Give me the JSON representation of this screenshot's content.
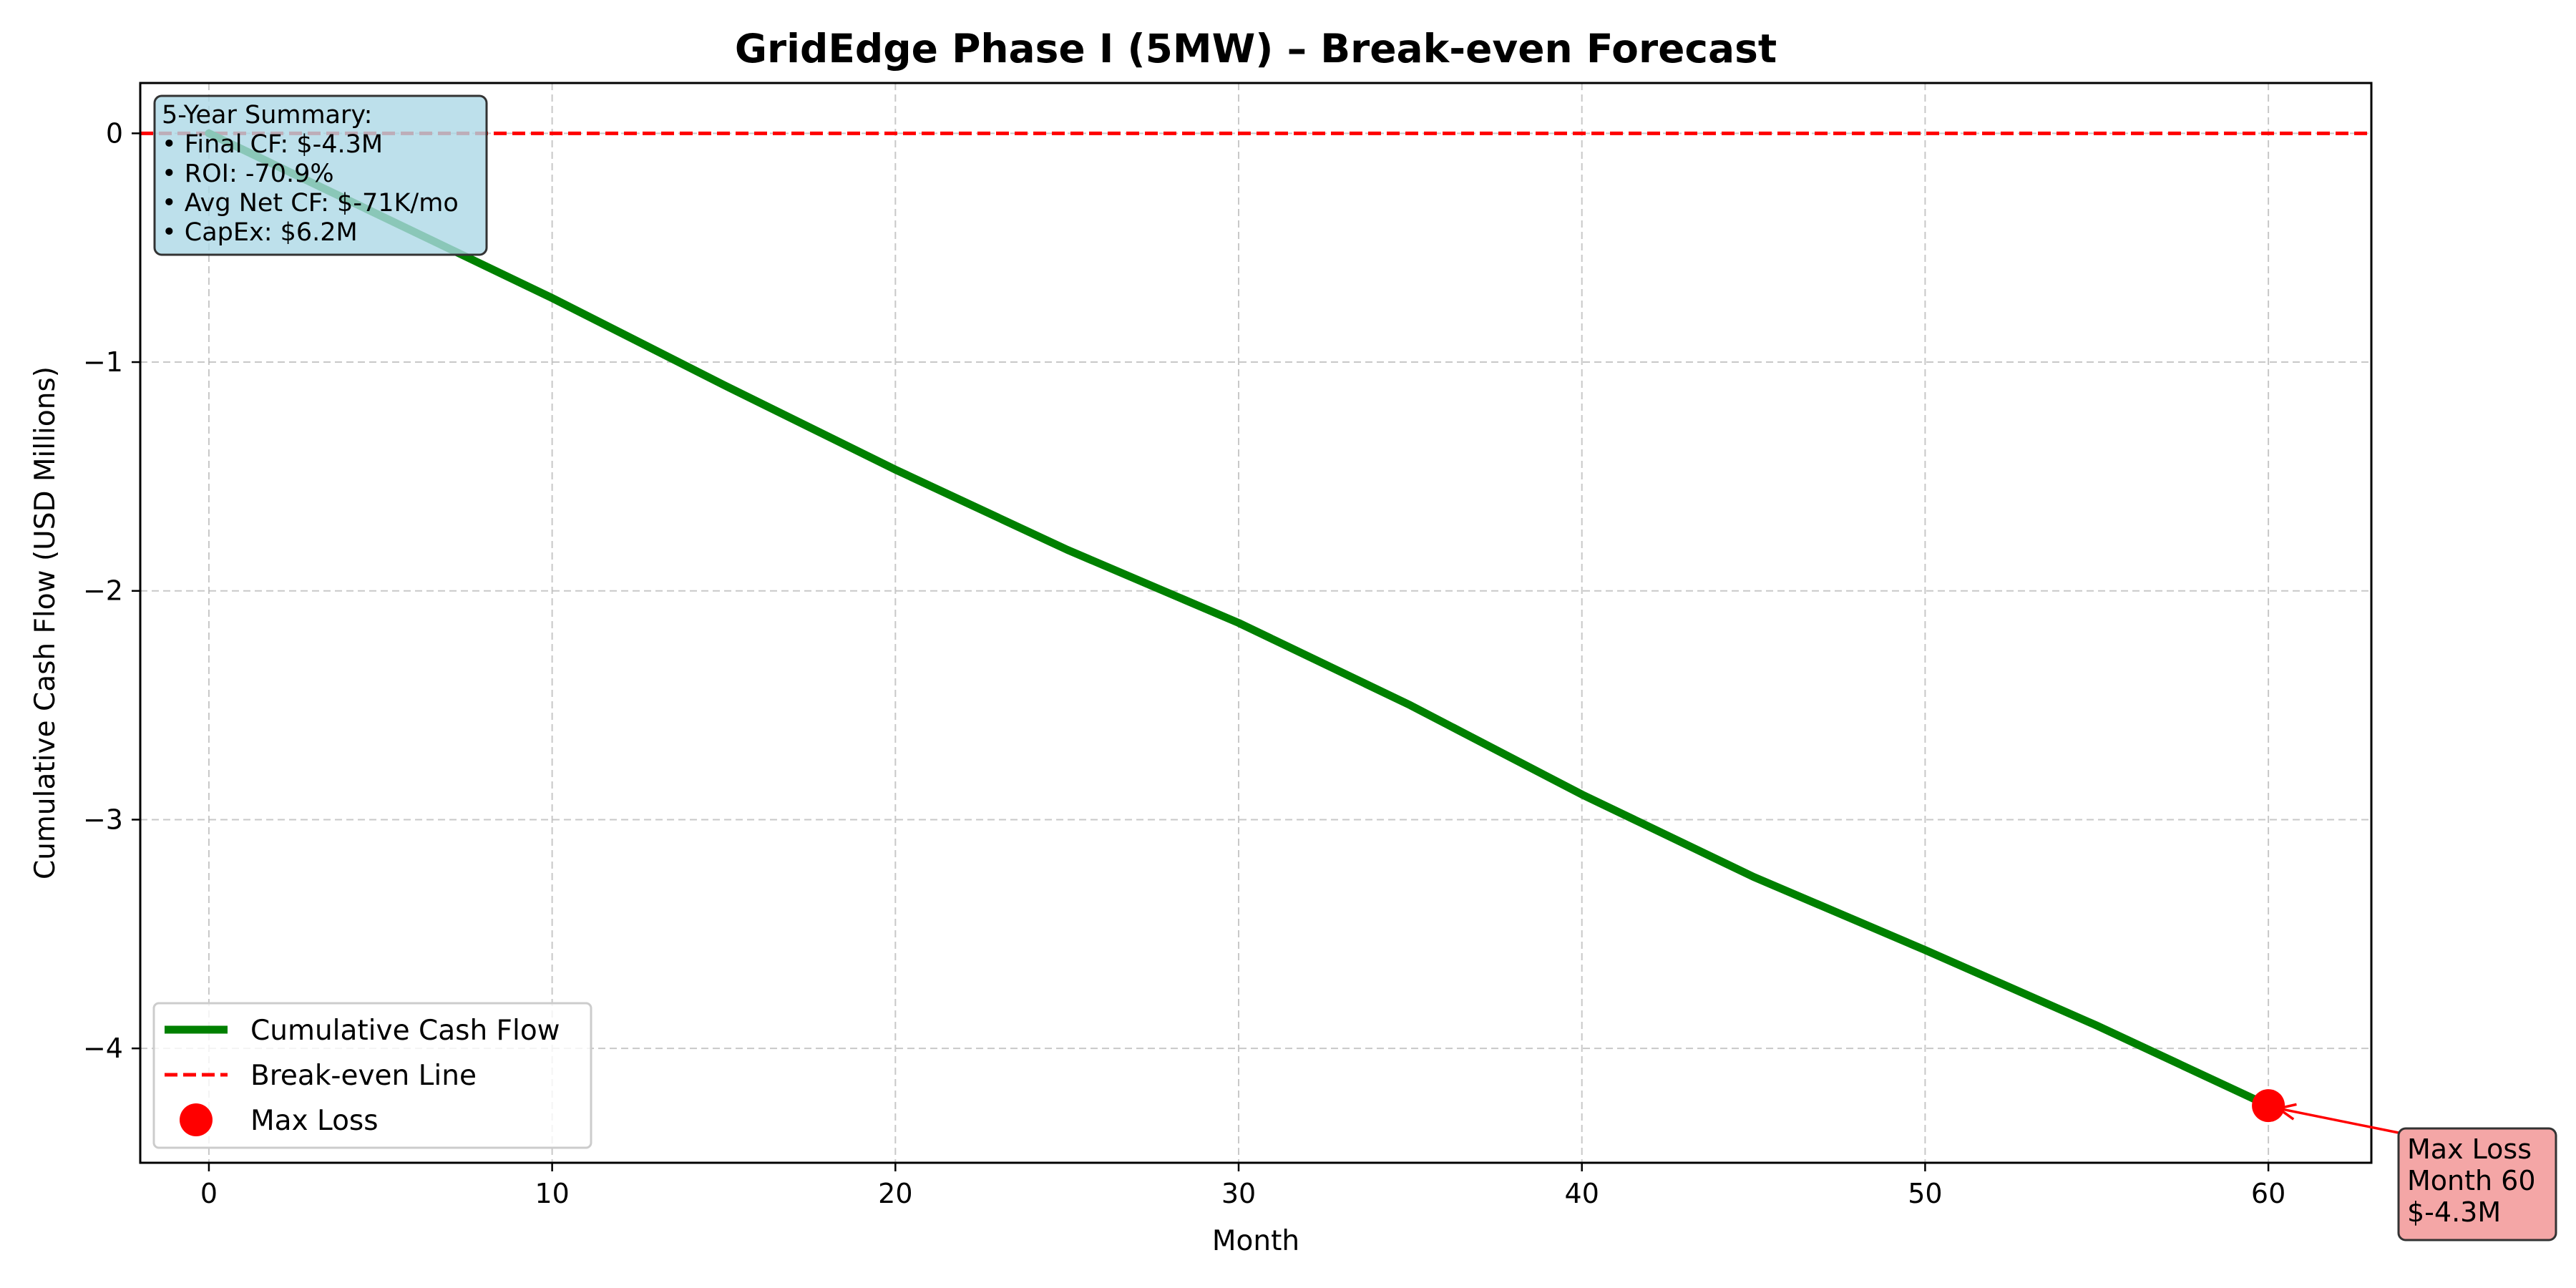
{
  "chart_data": {
    "type": "line",
    "title": "GridEdge Phase I (5MW) – Break-even Forecast",
    "xlabel": "Month",
    "ylabel": "Cumulative Cash Flow (USD Millions)",
    "xlim": [
      -2,
      63
    ],
    "ylim": [
      -4.5,
      0.22
    ],
    "x_ticks": [
      0,
      10,
      20,
      30,
      40,
      50,
      60
    ],
    "y_ticks": [
      0,
      -1,
      -2,
      -3,
      -4
    ],
    "y_tick_labels": [
      "0",
      "−1",
      "−2",
      "−3",
      "−4"
    ],
    "grid": true,
    "series": [
      {
        "name": "Cumulative Cash Flow",
        "color": "#008000",
        "style": "solid",
        "x": [
          0,
          5,
          10,
          15,
          20,
          25,
          30,
          35,
          40,
          45,
          50,
          55,
          60
        ],
        "y": [
          0.0,
          -0.36,
          -0.72,
          -1.1,
          -1.47,
          -1.82,
          -2.14,
          -2.5,
          -2.89,
          -3.25,
          -3.57,
          -3.9,
          -4.25
        ]
      },
      {
        "name": "Break-even Line",
        "color": "#ff0000",
        "style": "dashed",
        "y_constant": 0
      }
    ],
    "markers": [
      {
        "name": "Max Loss",
        "x": 60,
        "y": -4.25,
        "color": "#ff0000"
      }
    ],
    "legend": {
      "placement": "lower-left",
      "entries": [
        "Cumulative Cash Flow",
        "Break-even Line",
        "Max Loss"
      ]
    },
    "summary_box": {
      "lines": [
        "5-Year Summary:",
        "• Final CF: $-4.3M",
        "• ROI: -70.9%",
        "• Avg Net CF: $-71K/mo",
        "• CapEx: $6.2M"
      ],
      "background": "#add8e6"
    },
    "annotation": {
      "lines": [
        "Max Loss",
        "Month 60",
        "$-4.3M"
      ],
      "background": "#f08080",
      "arrow_color": "#ff0000"
    }
  }
}
